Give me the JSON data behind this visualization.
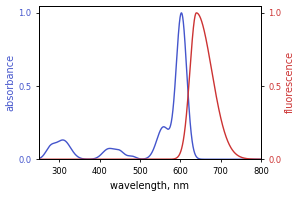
{
  "title": "",
  "xlabel": "wavelength, nm",
  "ylabel_left": "absorbance",
  "ylabel_right": "fluorescence",
  "xlim": [
    250,
    800
  ],
  "ylim": [
    0,
    1.05
  ],
  "color_abs": "#4455cc",
  "color_fluor": "#cc3333",
  "yticks": [
    0,
    0.5,
    1.0
  ],
  "xticks": [
    300,
    400,
    500,
    600,
    700,
    800
  ],
  "bg_color": "#f8f8f8",
  "linewidth": 1.0,
  "figsize": [
    3.0,
    1.97
  ],
  "dpi": 100
}
